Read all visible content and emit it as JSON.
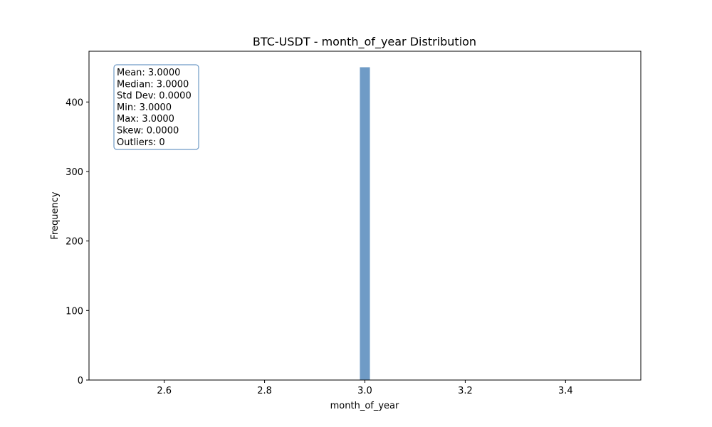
{
  "chart_data": {
    "type": "bar",
    "title": "BTC-USDT - month_of_year Distribution",
    "xlabel": "month_of_year",
    "ylabel": "Frequency",
    "xlim": [
      2.45,
      3.55
    ],
    "ylim": [
      0,
      473
    ],
    "x_ticks": [
      2.6,
      2.8,
      3.0,
      3.2,
      3.4
    ],
    "x_tick_labels": [
      "2.6",
      "2.8",
      "3.0",
      "3.2",
      "3.4"
    ],
    "y_ticks": [
      0,
      100,
      200,
      300,
      400
    ],
    "y_tick_labels": [
      "0",
      "100",
      "200",
      "300",
      "400"
    ],
    "bins": [
      {
        "x0": 2.99,
        "x1": 3.01,
        "count": 450
      }
    ],
    "bar_color": "#6f9bc6",
    "grid": false,
    "stats_box": {
      "position": "top-left",
      "border_color": "#6f9bc6",
      "lines": [
        "Mean: 3.0000",
        "Median: 3.0000",
        "Std Dev: 0.0000",
        "Min: 3.0000",
        "Max: 3.0000",
        "Skew: 0.0000",
        "Outliers: 0"
      ]
    }
  }
}
